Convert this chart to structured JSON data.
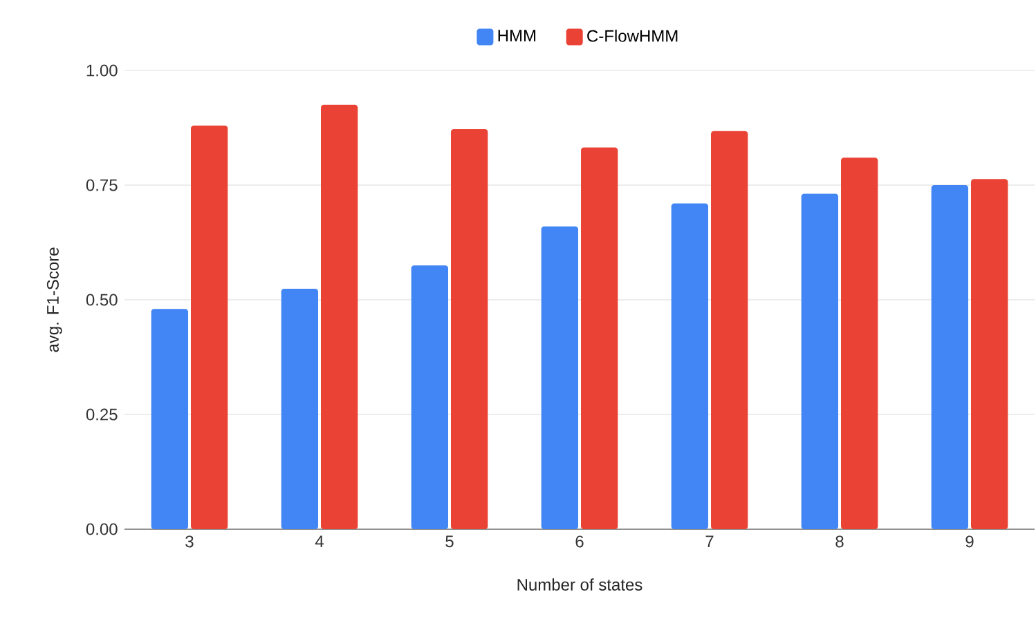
{
  "chart_data": {
    "type": "bar",
    "categories": [
      "3",
      "4",
      "5",
      "6",
      "7",
      "8",
      "9"
    ],
    "series": [
      {
        "name": "HMM",
        "color": "#4285f4",
        "values": [
          0.48,
          0.524,
          0.575,
          0.66,
          0.71,
          0.731,
          0.75
        ]
      },
      {
        "name": "C-FlowHMM",
        "color": "#ea4335",
        "values": [
          0.88,
          0.925,
          0.872,
          0.832,
          0.868,
          0.81,
          0.763
        ]
      }
    ],
    "xlabel": "Number of states",
    "ylabel": "avg. F1-Score",
    "ylim": [
      0,
      1
    ],
    "yticks": [
      {
        "value": 0,
        "label": "0.00"
      },
      {
        "value": 0.25,
        "label": "0.25"
      },
      {
        "value": 0.5,
        "label": "0.50"
      },
      {
        "value": 0.75,
        "label": "0.75"
      },
      {
        "value": 1,
        "label": "1.00"
      }
    ],
    "grid": "y",
    "legend": "top"
  }
}
